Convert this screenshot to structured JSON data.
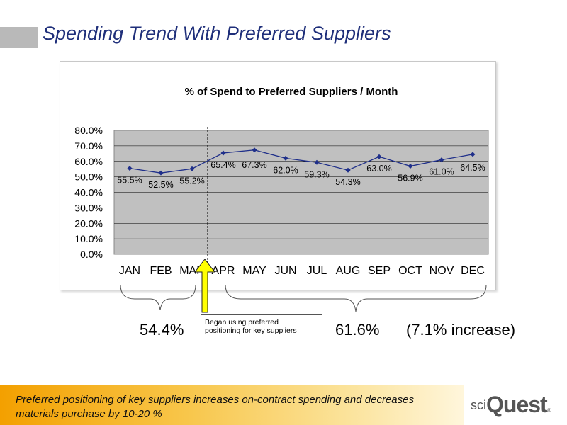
{
  "slide": {
    "title": "Spending Trend With Preferred Suppliers"
  },
  "chart_data": {
    "type": "line",
    "title": "% of Spend to Preferred Suppliers / Month",
    "categories": [
      "JAN",
      "FEB",
      "MAR",
      "APR",
      "MAY",
      "JUN",
      "JUL",
      "AUG",
      "SEP",
      "OCT",
      "NOV",
      "DEC"
    ],
    "series": [
      {
        "values": [
          55.5,
          52.5,
          55.2,
          65.4,
          67.3,
          62.0,
          59.3,
          54.3,
          63.0,
          56.9,
          61.0,
          64.5
        ],
        "labels": [
          "55.5%",
          "52.5%",
          "55.2%",
          "65.4%",
          "67.3%",
          "62.0%",
          "59.3%",
          "54.3%",
          "63.0%",
          "56.9%",
          "61.0%",
          "64.5%"
        ]
      }
    ],
    "yticks": [
      "0.0%",
      "10.0%",
      "20.0%",
      "30.0%",
      "40.0%",
      "50.0%",
      "60.0%",
      "70.0%",
      "80.0%"
    ],
    "ylim": [
      0,
      80
    ],
    "grid": true,
    "legend": "none",
    "line_color": "#1f2f8a",
    "plot_bg": "#c0c0c0",
    "divider_after_category": "MAR"
  },
  "annotations": {
    "before_value": "54.4%",
    "after_value": "61.6%",
    "after_increase": "(7.1% increase)",
    "note_line1": "Began using preferred",
    "note_line2": "positioning for key suppliers",
    "arrow_color": "#ffff00"
  },
  "footer": {
    "text": "Preferred positioning of key suppliers increases on-contract spending and decreases materials purchase by 10-20 %"
  },
  "logo": {
    "prefix": "sci",
    "main": "Quest",
    "mark": "®"
  }
}
